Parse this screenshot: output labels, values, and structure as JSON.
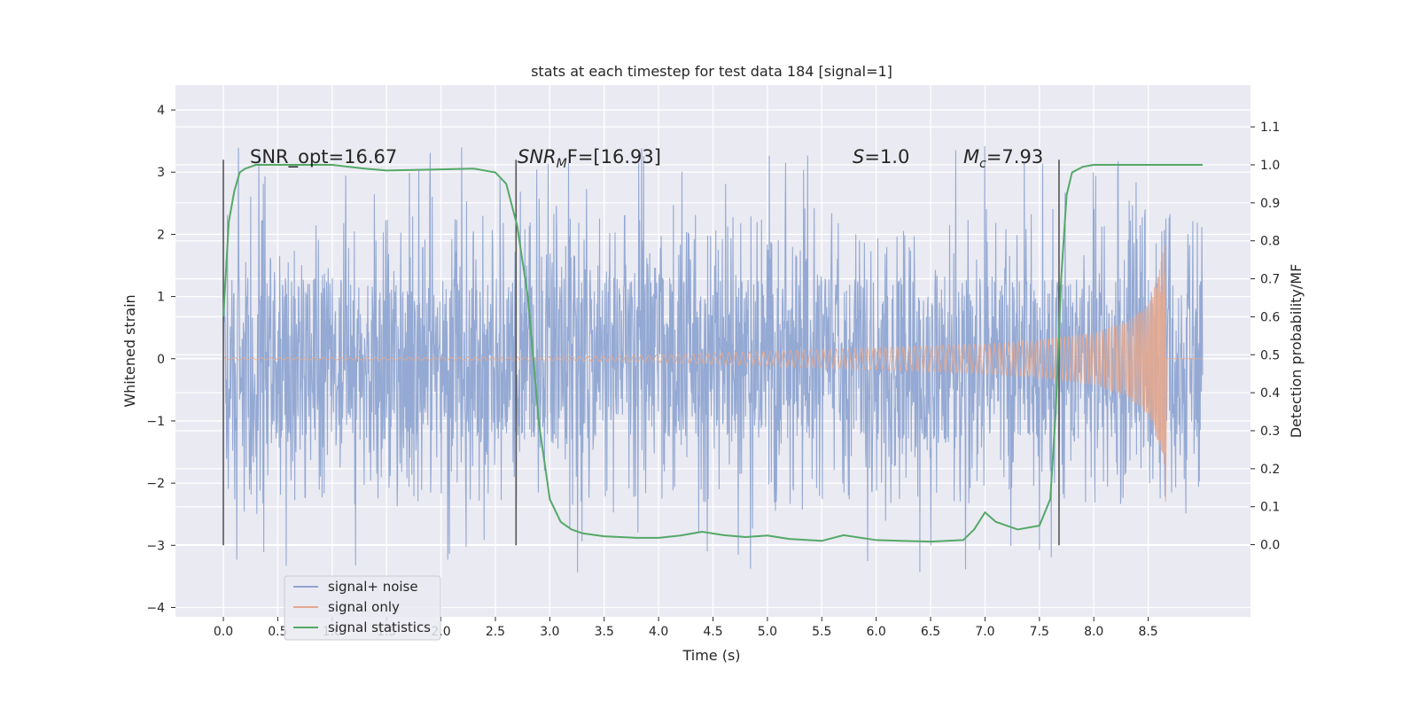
{
  "chart_data": {
    "type": "line",
    "title": "stats at each timestep for test data 184 [signal=1]",
    "xlabel": "Time (s)",
    "ylabel": "Whitened strain",
    "y2label": "Detection probability/MF",
    "xlim": [
      -0.44,
      9.44
    ],
    "ylim": [
      -4.15,
      4.4
    ],
    "y2lim": [
      -0.19,
      1.21
    ],
    "x_ticks": [
      "0.0",
      "0.5",
      "1.0",
      "1.5",
      "2.0",
      "2.5",
      "3.0",
      "3.5",
      "4.0",
      "4.5",
      "5.0",
      "5.5",
      "6.0",
      "6.5",
      "7.0",
      "7.5",
      "8.0",
      "8.5"
    ],
    "y_ticks": [
      "4",
      "3",
      "2",
      "1",
      "0",
      "−1",
      "−2",
      "−3",
      "−4"
    ],
    "y2_ticks": [
      "1.1",
      "1.0",
      "0.9",
      "0.8",
      "0.7",
      "0.6",
      "0.5",
      "0.4",
      "0.3",
      "0.2",
      "0.1",
      "0.0"
    ],
    "grid": true,
    "legend_placement": "lower-left",
    "annotations": {
      "snr_opt": "SNR_opt=16.67",
      "snr_mf_main": "SNR",
      "snr_mf_sub": "M",
      "snr_mf_tail": "F=[16.93]",
      "s_main": "S",
      "s_tail": "=1.0",
      "mc_main": "M",
      "mc_sub": "c",
      "mc_tail": "=7.93"
    },
    "vertical_markers": [
      0.0,
      2.69,
      7.68
    ],
    "marker_range": [
      -3.0,
      3.2
    ],
    "series": [
      {
        "name": "signal+ noise",
        "color": "#8fa5d1",
        "time_range": [
          0.0,
          9.0
        ],
        "typical_amplitude": 1.3,
        "peak_amplitude": 4.0
      },
      {
        "name": "signal only",
        "color": "#e3a890",
        "envelope_t": [
          0.0,
          3.0,
          4.0,
          5.0,
          6.0,
          7.0,
          7.5,
          8.0,
          8.3,
          8.5,
          8.6,
          8.65
        ],
        "envelope_a": [
          0.015,
          0.03,
          0.06,
          0.12,
          0.18,
          0.24,
          0.3,
          0.42,
          0.6,
          0.9,
          1.4,
          1.85
        ],
        "end_time": 8.66
      },
      {
        "name": "signal statistics",
        "color": "#55a868",
        "axis": "right",
        "t": [
          0.0,
          0.05,
          0.1,
          0.15,
          0.2,
          0.3,
          0.5,
          1.0,
          1.3,
          1.5,
          2.0,
          2.3,
          2.5,
          2.6,
          2.7,
          2.8,
          2.9,
          3.0,
          3.1,
          3.2,
          3.3,
          3.5,
          3.8,
          4.0,
          4.2,
          4.4,
          4.6,
          4.8,
          5.0,
          5.2,
          5.5,
          5.7,
          6.0,
          6.5,
          6.8,
          6.9,
          7.0,
          7.1,
          7.3,
          7.5,
          7.6,
          7.65,
          7.7,
          7.75,
          7.8,
          7.9,
          8.0,
          8.5,
          9.0
        ],
        "v": [
          0.6,
          0.85,
          0.93,
          0.98,
          0.99,
          1.0,
          1.0,
          1.0,
          0.99,
          0.985,
          0.988,
          0.99,
          0.98,
          0.95,
          0.84,
          0.65,
          0.32,
          0.12,
          0.06,
          0.04,
          0.03,
          0.022,
          0.018,
          0.018,
          0.024,
          0.034,
          0.025,
          0.02,
          0.024,
          0.015,
          0.01,
          0.025,
          0.012,
          0.008,
          0.012,
          0.04,
          0.085,
          0.06,
          0.04,
          0.05,
          0.12,
          0.35,
          0.7,
          0.92,
          0.98,
          0.995,
          1.0,
          1.0,
          1.0
        ]
      }
    ]
  }
}
